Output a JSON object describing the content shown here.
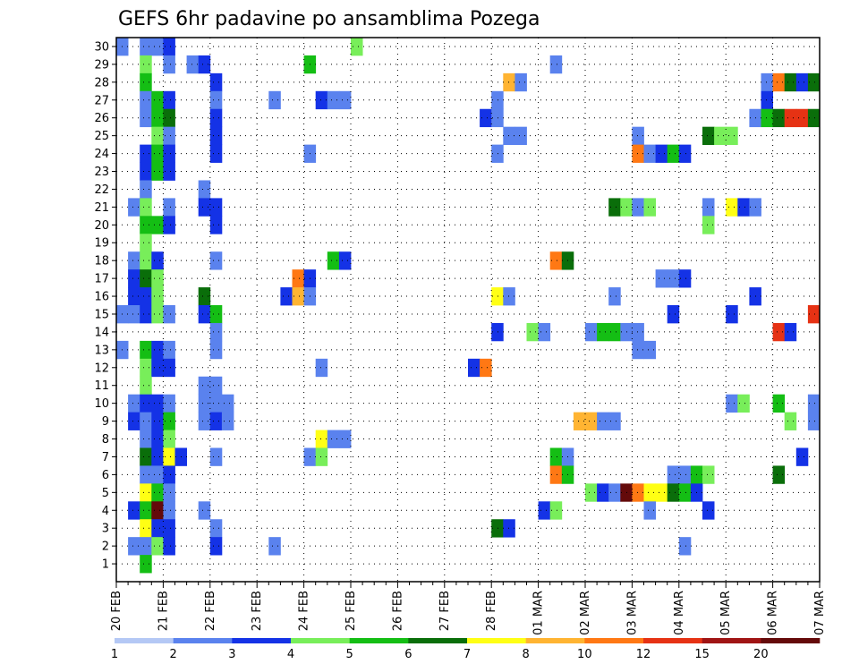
{
  "chart_data": {
    "type": "heatmap",
    "title": "GEFS 6hr padavine po ansamblima Pozega",
    "xlabel": "",
    "ylabel": "",
    "y_ticks": [
      1,
      2,
      3,
      4,
      5,
      6,
      7,
      8,
      9,
      10,
      11,
      12,
      13,
      14,
      15,
      16,
      17,
      18,
      19,
      20,
      21,
      22,
      23,
      24,
      25,
      26,
      27,
      28,
      29,
      30
    ],
    "ylim": [
      0,
      30.5
    ],
    "x_step_hours": 6,
    "x_steps": 60,
    "x_ticks": [
      {
        "step": 0,
        "label": "20 FEB"
      },
      {
        "step": 4,
        "label": "21 FEB"
      },
      {
        "step": 8,
        "label": "22 FEB"
      },
      {
        "step": 12,
        "label": "23 FEB"
      },
      {
        "step": 16,
        "label": "24 FEB"
      },
      {
        "step": 20,
        "label": "25 FEB"
      },
      {
        "step": 24,
        "label": "26 FEB"
      },
      {
        "step": 28,
        "label": "27 FEB"
      },
      {
        "step": 32,
        "label": "28 FEB"
      },
      {
        "step": 36,
        "label": "01 MAR"
      },
      {
        "step": 40,
        "label": "02 MAR"
      },
      {
        "step": 44,
        "label": "03 MAR"
      },
      {
        "step": 48,
        "label": "04 MAR"
      },
      {
        "step": 52,
        "label": "05 MAR"
      },
      {
        "step": 56,
        "label": "06 MAR"
      },
      {
        "step": 60,
        "label": "07 MAR"
      }
    ],
    "colorbar": {
      "levels": [
        "1",
        "2",
        "3",
        "4",
        "5",
        "6",
        "7",
        "8",
        "10",
        "12",
        "15",
        "20"
      ],
      "colors": [
        "#b4c8f5",
        "#5a82ee",
        "#1432e6",
        "#78ee5a",
        "#14be14",
        "#0a6e0a",
        "#ffff14",
        "#ffb432",
        "#ff7814",
        "#e63214",
        "#a01414",
        "#640a0a"
      ]
    },
    "cells": [
      [
        30,
        [
          [
            0,
            1
          ],
          [
            2,
            1
          ],
          [
            3,
            1
          ],
          [
            4,
            2
          ],
          [
            20,
            3
          ]
        ]
      ],
      [
        29,
        [
          [
            2,
            3
          ],
          [
            4,
            1
          ],
          [
            6,
            1
          ],
          [
            7,
            2
          ],
          [
            16,
            4
          ],
          [
            37,
            1
          ]
        ]
      ],
      [
        28,
        [
          [
            2,
            4
          ],
          [
            8,
            2
          ],
          [
            33,
            7
          ],
          [
            34,
            1
          ],
          [
            55,
            1
          ],
          [
            56,
            8
          ],
          [
            57,
            5
          ],
          [
            58,
            2
          ],
          [
            59,
            5
          ]
        ]
      ],
      [
        27,
        [
          [
            2,
            1
          ],
          [
            3,
            4
          ],
          [
            4,
            2
          ],
          [
            8,
            1
          ],
          [
            13,
            1
          ],
          [
            17,
            2
          ],
          [
            18,
            1
          ],
          [
            19,
            1
          ],
          [
            32,
            1
          ],
          [
            55,
            2
          ]
        ]
      ],
      [
        26,
        [
          [
            2,
            1
          ],
          [
            3,
            4
          ],
          [
            4,
            5
          ],
          [
            8,
            2
          ],
          [
            31,
            2
          ],
          [
            32,
            1
          ],
          [
            54,
            1
          ],
          [
            55,
            4
          ],
          [
            56,
            5
          ],
          [
            57,
            9
          ],
          [
            58,
            9
          ],
          [
            59,
            5
          ]
        ]
      ],
      [
        25,
        [
          [
            3,
            3
          ],
          [
            4,
            1
          ],
          [
            8,
            2
          ],
          [
            33,
            1
          ],
          [
            34,
            1
          ],
          [
            44,
            1
          ],
          [
            50,
            5
          ],
          [
            51,
            3
          ],
          [
            52,
            3
          ]
        ]
      ],
      [
        24,
        [
          [
            2,
            2
          ],
          [
            3,
            4
          ],
          [
            4,
            2
          ],
          [
            8,
            2
          ],
          [
            16,
            1
          ],
          [
            32,
            1
          ],
          [
            44,
            8
          ],
          [
            45,
            1
          ],
          [
            46,
            2
          ],
          [
            47,
            4
          ],
          [
            48,
            2
          ]
        ]
      ],
      [
        23,
        [
          [
            2,
            2
          ],
          [
            3,
            4
          ],
          [
            4,
            2
          ]
        ]
      ],
      [
        22,
        [
          [
            2,
            1
          ],
          [
            7,
            1
          ]
        ]
      ],
      [
        21,
        [
          [
            1,
            1
          ],
          [
            2,
            3
          ],
          [
            4,
            1
          ],
          [
            7,
            2
          ],
          [
            8,
            2
          ],
          [
            42,
            5
          ],
          [
            43,
            3
          ],
          [
            44,
            1
          ],
          [
            45,
            3
          ],
          [
            50,
            1
          ],
          [
            52,
            6
          ],
          [
            53,
            2
          ],
          [
            54,
            1
          ]
        ]
      ],
      [
        20,
        [
          [
            2,
            4
          ],
          [
            3,
            4
          ],
          [
            4,
            2
          ],
          [
            8,
            2
          ],
          [
            50,
            3
          ]
        ]
      ],
      [
        19,
        [
          [
            2,
            3
          ]
        ]
      ],
      [
        18,
        [
          [
            1,
            1
          ],
          [
            2,
            3
          ],
          [
            3,
            2
          ],
          [
            8,
            1
          ],
          [
            18,
            4
          ],
          [
            19,
            2
          ],
          [
            37,
            8
          ],
          [
            38,
            5
          ]
        ]
      ],
      [
        17,
        [
          [
            1,
            2
          ],
          [
            2,
            5
          ],
          [
            3,
            3
          ],
          [
            15,
            8
          ],
          [
            16,
            2
          ],
          [
            46,
            1
          ],
          [
            47,
            1
          ],
          [
            48,
            2
          ]
        ]
      ],
      [
        16,
        [
          [
            1,
            2
          ],
          [
            2,
            2
          ],
          [
            3,
            3
          ],
          [
            7,
            5
          ],
          [
            14,
            2
          ],
          [
            15,
            7
          ],
          [
            16,
            1
          ],
          [
            32,
            6
          ],
          [
            33,
            1
          ],
          [
            42,
            1
          ],
          [
            54,
            2
          ]
        ]
      ],
      [
        15,
        [
          [
            0,
            1
          ],
          [
            1,
            1
          ],
          [
            2,
            2
          ],
          [
            3,
            3
          ],
          [
            4,
            1
          ],
          [
            7,
            2
          ],
          [
            8,
            4
          ],
          [
            47,
            2
          ],
          [
            52,
            2
          ],
          [
            59,
            9
          ]
        ]
      ],
      [
        14,
        [
          [
            8,
            1
          ],
          [
            32,
            2
          ],
          [
            35,
            3
          ],
          [
            36,
            1
          ],
          [
            40,
            1
          ],
          [
            41,
            4
          ],
          [
            42,
            4
          ],
          [
            43,
            1
          ],
          [
            44,
            1
          ],
          [
            56,
            9
          ],
          [
            57,
            2
          ]
        ]
      ],
      [
        13,
        [
          [
            0,
            1
          ],
          [
            2,
            4
          ],
          [
            3,
            2
          ],
          [
            4,
            1
          ],
          [
            8,
            1
          ],
          [
            44,
            1
          ],
          [
            45,
            1
          ]
        ]
      ],
      [
        12,
        [
          [
            2,
            3
          ],
          [
            3,
            2
          ],
          [
            4,
            2
          ],
          [
            17,
            1
          ],
          [
            30,
            2
          ],
          [
            31,
            8
          ]
        ]
      ],
      [
        11,
        [
          [
            2,
            3
          ],
          [
            7,
            1
          ],
          [
            8,
            1
          ]
        ]
      ],
      [
        10,
        [
          [
            1,
            1
          ],
          [
            2,
            2
          ],
          [
            3,
            2
          ],
          [
            4,
            1
          ],
          [
            7,
            1
          ],
          [
            8,
            1
          ],
          [
            9,
            1
          ],
          [
            52,
            1
          ],
          [
            53,
            3
          ],
          [
            56,
            4
          ],
          [
            59,
            1
          ]
        ]
      ],
      [
        9,
        [
          [
            1,
            2
          ],
          [
            2,
            1
          ],
          [
            3,
            2
          ],
          [
            4,
            4
          ],
          [
            7,
            1
          ],
          [
            8,
            2
          ],
          [
            9,
            1
          ],
          [
            39,
            7
          ],
          [
            40,
            7
          ],
          [
            41,
            1
          ],
          [
            42,
            1
          ],
          [
            57,
            3
          ],
          [
            59,
            1
          ]
        ]
      ],
      [
        8,
        [
          [
            2,
            1
          ],
          [
            3,
            2
          ],
          [
            4,
            3
          ],
          [
            17,
            6
          ],
          [
            18,
            1
          ],
          [
            19,
            1
          ]
        ]
      ],
      [
        7,
        [
          [
            2,
            5
          ],
          [
            3,
            2
          ],
          [
            4,
            6
          ],
          [
            5,
            2
          ],
          [
            8,
            1
          ],
          [
            16,
            1
          ],
          [
            17,
            3
          ],
          [
            37,
            4
          ],
          [
            38,
            1
          ],
          [
            58,
            2
          ]
        ]
      ],
      [
        6,
        [
          [
            2,
            1
          ],
          [
            3,
            1
          ],
          [
            4,
            2
          ],
          [
            37,
            8
          ],
          [
            38,
            4
          ],
          [
            47,
            1
          ],
          [
            48,
            1
          ],
          [
            49,
            4
          ],
          [
            50,
            3
          ],
          [
            56,
            5
          ]
        ]
      ],
      [
        5,
        [
          [
            2,
            6
          ],
          [
            3,
            4
          ],
          [
            4,
            1
          ],
          [
            40,
            3
          ],
          [
            41,
            2
          ],
          [
            42,
            1
          ],
          [
            43,
            11
          ],
          [
            44,
            8
          ],
          [
            45,
            6
          ],
          [
            46,
            6
          ],
          [
            47,
            5
          ],
          [
            48,
            4
          ],
          [
            49,
            2
          ]
        ]
      ],
      [
        4,
        [
          [
            1,
            2
          ],
          [
            2,
            4
          ],
          [
            3,
            11
          ],
          [
            4,
            1
          ],
          [
            7,
            1
          ],
          [
            36,
            2
          ],
          [
            37,
            3
          ],
          [
            45,
            1
          ],
          [
            50,
            2
          ]
        ]
      ],
      [
        3,
        [
          [
            2,
            6
          ],
          [
            3,
            2
          ],
          [
            4,
            2
          ],
          [
            8,
            1
          ],
          [
            32,
            5
          ],
          [
            33,
            2
          ]
        ]
      ],
      [
        2,
        [
          [
            1,
            1
          ],
          [
            2,
            1
          ],
          [
            3,
            3
          ],
          [
            4,
            2
          ],
          [
            8,
            2
          ],
          [
            13,
            1
          ],
          [
            48,
            1
          ]
        ]
      ],
      [
        1,
        [
          [
            2,
            4
          ]
        ]
      ]
    ]
  }
}
